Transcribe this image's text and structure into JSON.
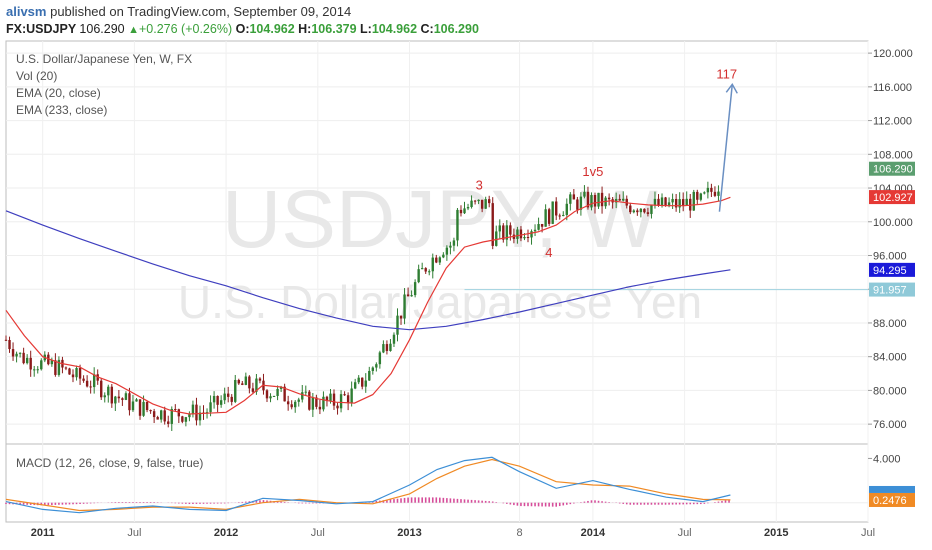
{
  "header": {
    "user": "alivsm",
    "published_text": " published on TradingView.com, September 09, 2014",
    "symbol": "FX:USDJPY",
    "last": "106.290",
    "arrow": "▲",
    "change": "+0.276 (+0.26%)",
    "o_label": "O:",
    "o_value": "104.962",
    "h_label": "H:",
    "h_value": "106.379",
    "l_label": "L:",
    "l_value": "104.962",
    "c_label": "C:",
    "c_value": "106.290"
  },
  "legend": {
    "line1": "U.S. Dollar/Japanese Yen, W, FX",
    "line2": "Vol (20)",
    "line3": "EMA (20, close)",
    "line4": "EMA (233, close)",
    "macd": "MACD (12, 26, close, 9, false, true)"
  },
  "watermark": {
    "big": "USDJPY, W",
    "sub": "U.S. Dollar/Japanese Yen"
  },
  "colors": {
    "up_candle": "#2e7d32",
    "down_candle": "#8b1a1a",
    "ema20": "#e53935",
    "ema233": "#3f3fbf",
    "macd_line": "#3d8fd6",
    "signal_line": "#f08a24",
    "hist": "#d64d9a",
    "projection_arrow": "#6a8fc2",
    "wave_label": "#d32f2f",
    "support_line": "#9fd3e0"
  },
  "chart_data": [
    {
      "type": "candlestick",
      "title": "U.S. Dollar/Japanese Yen, W, FX",
      "timeframe": "W",
      "y_axis_side": "right",
      "ylim": [
        74.0,
        121.2
      ],
      "y_ticks": [
        "120.000",
        "116.000",
        "112.000",
        "108.000",
        "104.000",
        "100.000",
        "96.000",
        "92.000",
        "88.000",
        "84.000",
        "80.000",
        "76.000"
      ],
      "x_ticks": [
        "2011",
        "Jul",
        "2012",
        "Jul",
        "2013",
        "8",
        "2014",
        "Jul",
        "2015",
        "Jul"
      ],
      "price_tags": [
        {
          "label": "106.290",
          "value": 106.29,
          "color": "#5b9e6f"
        },
        {
          "label": "102.927",
          "value": 102.927,
          "color": "#e53935"
        },
        {
          "label": "94.295",
          "value": 94.295,
          "color": "#1a1ad9"
        },
        {
          "label": "91.957",
          "value": 91.957,
          "color": "#8fc9d8"
        }
      ],
      "annotations": [
        {
          "text": "3",
          "x": "2013-05",
          "y": 103.8
        },
        {
          "text": "4",
          "x": "2013-10",
          "y": 95.8
        },
        {
          "text": "1v5",
          "x": "2014-01",
          "y": 105.4
        },
        {
          "text": "117",
          "x": "2014-09",
          "y": 117.0
        }
      ],
      "horizontal_line": 91.957,
      "series": [
        {
          "name": "EMA (20, close)",
          "t": [
            2010.8,
            2010.9,
            2011.0,
            2011.1,
            2011.2,
            2011.3,
            2011.4,
            2011.5,
            2011.6,
            2011.7,
            2011.8,
            2011.9,
            2012.0,
            2012.1,
            2012.2,
            2012.3,
            2012.4,
            2012.5,
            2012.6,
            2012.7,
            2012.8,
            2012.9,
            2013.0,
            2013.1,
            2013.2,
            2013.3,
            2013.4,
            2013.5,
            2013.6,
            2013.7,
            2013.8,
            2013.9,
            2014.0,
            2014.1,
            2014.2,
            2014.3,
            2014.4,
            2014.5,
            2014.6,
            2014.7,
            2014.75
          ],
          "values": [
            89.5,
            86.5,
            84.0,
            83.2,
            82.8,
            81.6,
            80.8,
            79.6,
            78.4,
            77.6,
            77.2,
            77.3,
            77.4,
            78.8,
            80.6,
            80.4,
            79.6,
            79.0,
            78.6,
            78.5,
            79.5,
            82.0,
            86.0,
            90.5,
            94.5,
            97.0,
            97.6,
            98.0,
            98.4,
            98.8,
            99.6,
            101.2,
            102.2,
            102.5,
            102.2,
            102.0,
            101.9,
            101.9,
            102.1,
            102.5,
            102.9
          ]
        },
        {
          "name": "EMA (233, close)",
          "t": [
            2010.8,
            2011.0,
            2011.2,
            2011.4,
            2011.6,
            2011.8,
            2012.0,
            2012.2,
            2012.4,
            2012.6,
            2012.8,
            2013.0,
            2013.2,
            2013.4,
            2013.6,
            2013.8,
            2014.0,
            2014.2,
            2014.4,
            2014.6,
            2014.75
          ],
          "values": [
            101.3,
            99.6,
            98.0,
            96.5,
            95.0,
            93.6,
            92.4,
            91.0,
            89.7,
            88.6,
            87.6,
            87.2,
            87.6,
            88.4,
            89.3,
            90.3,
            91.3,
            92.3,
            93.1,
            93.8,
            94.3
          ]
        }
      ]
    },
    {
      "type": "line",
      "title": "MACD (12, 26, close, 9, false, true)",
      "ylim": [
        -1.2,
        4.4
      ],
      "y_ticks": [
        "4.000"
      ],
      "price_tags": [
        {
          "label": "0.2476",
          "value": 0.2476,
          "color": "#f08a24"
        }
      ],
      "series": [
        {
          "name": "MACD",
          "t": [
            2010.8,
            2011.0,
            2011.2,
            2011.4,
            2011.6,
            2011.8,
            2012.0,
            2012.2,
            2012.4,
            2012.6,
            2012.8,
            2013.0,
            2013.15,
            2013.3,
            2013.45,
            2013.6,
            2013.8,
            2014.0,
            2014.2,
            2014.4,
            2014.6,
            2014.75
          ],
          "values": [
            0.1,
            -0.6,
            -0.9,
            -0.5,
            -0.3,
            -0.6,
            -0.7,
            0.4,
            0.2,
            -0.1,
            0.1,
            1.6,
            3.0,
            3.8,
            4.1,
            2.8,
            1.3,
            2.0,
            1.2,
            0.5,
            0.1,
            0.7
          ]
        },
        {
          "name": "Signal",
          "t": [
            2010.8,
            2011.0,
            2011.2,
            2011.4,
            2011.6,
            2011.8,
            2012.0,
            2012.2,
            2012.4,
            2012.6,
            2012.8,
            2013.0,
            2013.15,
            2013.3,
            2013.45,
            2013.6,
            2013.8,
            2014.0,
            2014.2,
            2014.4,
            2014.6,
            2014.75
          ],
          "values": [
            0.3,
            -0.2,
            -0.7,
            -0.6,
            -0.4,
            -0.4,
            -0.6,
            0.0,
            0.3,
            0.0,
            -0.1,
            0.8,
            2.2,
            3.3,
            3.9,
            3.3,
            1.9,
            1.6,
            1.5,
            0.8,
            0.3,
            0.25
          ]
        }
      ]
    }
  ]
}
